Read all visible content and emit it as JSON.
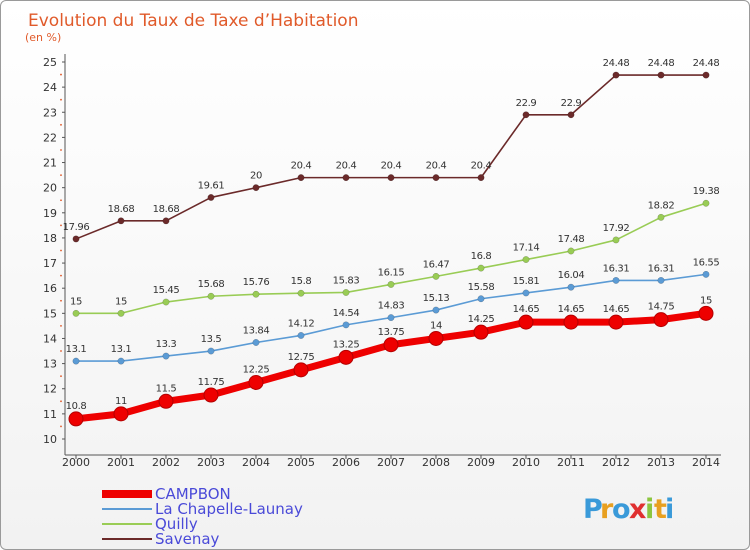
{
  "chart_data": {
    "type": "line",
    "title": "Evolution du Taux de Taxe d’Habitation",
    "subtitle": "(en %)",
    "x": [
      "2000",
      "2001",
      "2002",
      "2003",
      "2004",
      "2005",
      "2006",
      "2007",
      "2008",
      "2009",
      "2010",
      "2011",
      "2012",
      "2013",
      "2014"
    ],
    "ylim": [
      10,
      25
    ],
    "yticks": [
      "10",
      "11",
      "12",
      "13",
      "14",
      "15",
      "16",
      "17",
      "18",
      "19",
      "20",
      "21",
      "22",
      "23",
      "24",
      "25"
    ],
    "grid": false,
    "legend_position": "bottom-left",
    "series": [
      {
        "name": "CAMPBON",
        "color": "#ee0000",
        "values": [
          10.8,
          11,
          11.5,
          11.75,
          12.25,
          12.75,
          13.25,
          13.75,
          14,
          14.25,
          14.65,
          14.65,
          14.65,
          14.75,
          15
        ],
        "labels": [
          "10.8",
          "11",
          "11.5",
          "11.75",
          "12.25",
          "12.75",
          "13.25",
          "13.75",
          "14",
          "14.25",
          "14.65",
          "14.65",
          "14.65",
          "14.75",
          "15"
        ]
      },
      {
        "name": "La Chapelle-Launay",
        "color": "#5b9bd5",
        "values": [
          13.1,
          13.1,
          13.3,
          13.5,
          13.84,
          14.12,
          14.54,
          14.83,
          15.13,
          15.58,
          15.81,
          16.04,
          16.31,
          16.31,
          16.55
        ],
        "labels": [
          "13.1",
          "13.1",
          "13.3",
          "13.5",
          "13.84",
          "14.12",
          "14.54",
          "14.83",
          "15.13",
          "15.58",
          "15.81",
          "16.04",
          "16.31",
          "16.31",
          "16.55"
        ]
      },
      {
        "name": "Quilly",
        "color": "#99cc55",
        "values": [
          15,
          15,
          15.45,
          15.68,
          15.76,
          15.8,
          15.83,
          16.15,
          16.47,
          16.8,
          17.14,
          17.48,
          17.92,
          18.82,
          19.38
        ],
        "labels": [
          "15",
          "15",
          "15.45",
          "15.68",
          "15.76",
          "15.8",
          "15.83",
          "16.15",
          "16.47",
          "16.8",
          "17.14",
          "17.48",
          "17.92",
          "18.82",
          "19.38"
        ]
      },
      {
        "name": "Savenay",
        "color": "#6b2a2a",
        "values": [
          17.96,
          18.68,
          18.68,
          19.61,
          20,
          20.4,
          20.4,
          20.4,
          20.4,
          20.4,
          22.9,
          22.9,
          24.48,
          24.48,
          24.48
        ],
        "labels": [
          "17.96",
          "18.68",
          "18.68",
          "19.61",
          "20",
          "20.4",
          "20.4",
          "20.4",
          "20.4",
          "20.4",
          "22.9",
          "22.9",
          "24.48",
          "24.48",
          "24.48"
        ]
      }
    ]
  },
  "logo": {
    "letters": [
      "P",
      "r",
      "o",
      "x",
      "i",
      "t",
      "i"
    ],
    "colors": [
      "#3a9ad9",
      "#e8a020",
      "#3a9ad9",
      "#e03030",
      "#8cc63f",
      "#e8a020",
      "#3a9ad9"
    ]
  }
}
